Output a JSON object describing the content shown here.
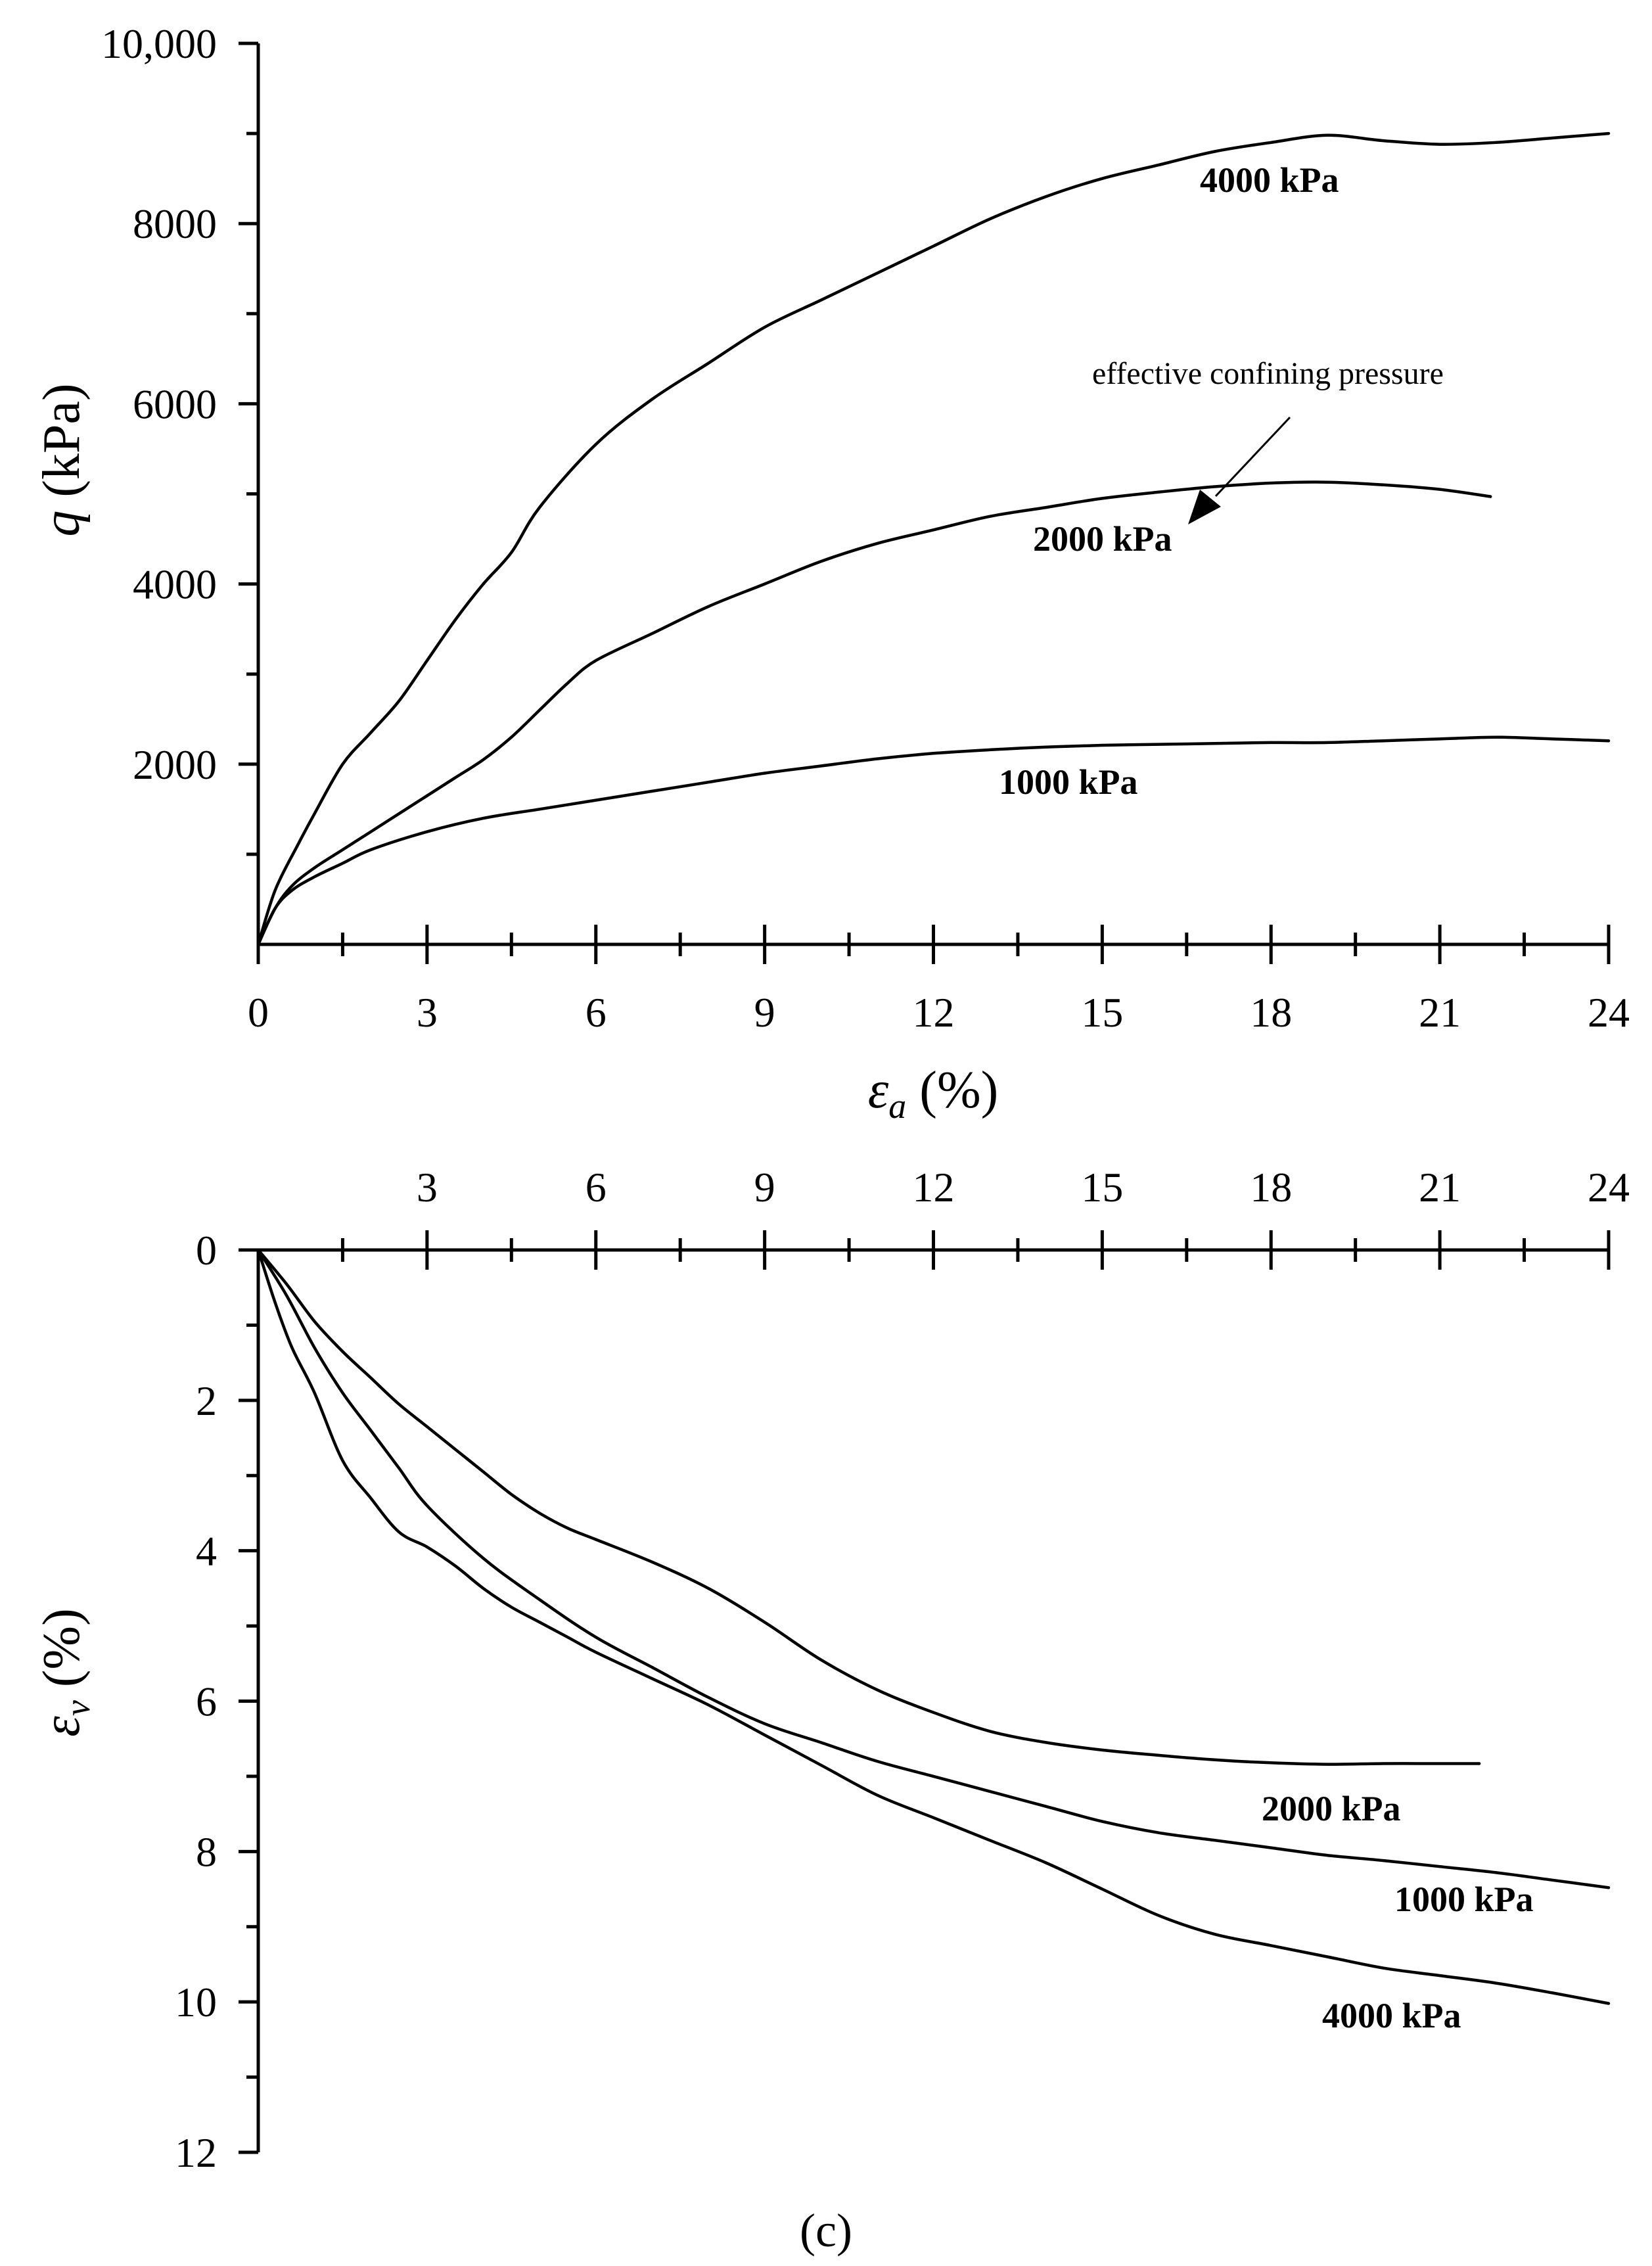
{
  "chart_data": [
    {
      "id": "top",
      "type": "line",
      "xlabel_symbol": "ε",
      "xlabel_sub": "a",
      "xlabel_unit": " (%)",
      "ylabel_symbol": "q",
      "ylabel_unit": " (kPa)",
      "xlim": [
        0,
        24
      ],
      "ylim": [
        0,
        10000
      ],
      "x_ticks": [
        0,
        3,
        6,
        9,
        12,
        15,
        18,
        21,
        24
      ],
      "x_tick_labels": [
        "0",
        "3",
        "6",
        "9",
        "12",
        "15",
        "18",
        "21",
        "24"
      ],
      "y_ticks": [
        2000,
        4000,
        6000,
        8000,
        10000
      ],
      "y_tick_labels": [
        "2000",
        "4000",
        "6000",
        "8000",
        "10,000"
      ],
      "annotation": "effective confining pressure",
      "series": [
        {
          "name": "4000 kPa",
          "label": "4000 kPa",
          "x": [
            0,
            0.3,
            0.7,
            1.0,
            1.5,
            2.0,
            2.5,
            3.0,
            3.5,
            4.0,
            4.5,
            5.0,
            6.0,
            7.0,
            8.0,
            9.0,
            10.0,
            11.0,
            12.0,
            13.0,
            14.0,
            15.0,
            16.0,
            17.0,
            18.0,
            19.0,
            20.0,
            21.0,
            22.0,
            23.0,
            24.0
          ],
          "y": [
            0,
            600,
            1100,
            1450,
            2000,
            2350,
            2700,
            3150,
            3600,
            4000,
            4350,
            4850,
            5550,
            6050,
            6450,
            6850,
            7150,
            7450,
            7750,
            8050,
            8300,
            8500,
            8650,
            8800,
            8900,
            8980,
            8920,
            8880,
            8900,
            8950,
            9000
          ]
        },
        {
          "name": "2000 kPa",
          "label": "2000 kPa",
          "x": [
            0,
            0.3,
            0.6,
            1.0,
            1.5,
            2.0,
            2.5,
            3.0,
            3.5,
            4.0,
            4.5,
            5.0,
            5.5,
            6.0,
            7.0,
            8.0,
            9.0,
            10.0,
            11.0,
            12.0,
            13.0,
            14.0,
            15.0,
            16.0,
            17.0,
            18.0,
            19.0,
            20.0,
            21.0,
            21.9
          ],
          "y": [
            0,
            400,
            650,
            850,
            1050,
            1250,
            1450,
            1650,
            1850,
            2050,
            2300,
            2600,
            2900,
            3150,
            3450,
            3750,
            4000,
            4250,
            4450,
            4600,
            4750,
            4850,
            4950,
            5020,
            5080,
            5120,
            5130,
            5100,
            5050,
            4970
          ]
        },
        {
          "name": "1000 kPa",
          "label": "1000 kPa",
          "x": [
            0,
            0.3,
            0.6,
            1.0,
            1.5,
            2.0,
            3.0,
            4.0,
            5.0,
            6.0,
            7.0,
            8.0,
            9.0,
            10.0,
            11.0,
            12.0,
            13.0,
            14.0,
            15.0,
            16.0,
            17.0,
            18.0,
            19.0,
            20.0,
            21.0,
            22.0,
            23.0,
            24.0
          ],
          "y": [
            0,
            400,
            600,
            750,
            900,
            1050,
            1250,
            1400,
            1500,
            1600,
            1700,
            1800,
            1900,
            1980,
            2060,
            2120,
            2160,
            2190,
            2210,
            2220,
            2230,
            2240,
            2240,
            2260,
            2280,
            2300,
            2280,
            2260
          ]
        }
      ]
    },
    {
      "id": "bottom",
      "type": "line",
      "panel_label": "(c)",
      "ylabel_symbol": "ε",
      "ylabel_sub": "v",
      "ylabel_unit": " (%)",
      "xlim": [
        0,
        24
      ],
      "ylim": [
        0,
        12
      ],
      "y_inverted": true,
      "x_axis_position": "top",
      "x_ticks": [
        3,
        6,
        9,
        12,
        15,
        18,
        21,
        24
      ],
      "x_tick_labels": [
        "3",
        "6",
        "9",
        "12",
        "15",
        "18",
        "21",
        "24"
      ],
      "y_ticks": [
        0,
        2,
        4,
        6,
        8,
        10,
        12
      ],
      "y_tick_labels": [
        "0",
        "2",
        "4",
        "6",
        "8",
        "10",
        "12"
      ],
      "series": [
        {
          "name": "2000 kPa",
          "label": "2000 kPa",
          "x": [
            0,
            0.5,
            1.0,
            1.5,
            2.0,
            2.5,
            3.0,
            3.5,
            4.0,
            4.5,
            5.0,
            5.5,
            6.0,
            7.0,
            8.0,
            9.0,
            10.0,
            11.0,
            12.0,
            13.0,
            14.0,
            15.0,
            16.0,
            17.0,
            18.0,
            19.0,
            20.0,
            21.0,
            21.7
          ],
          "y": [
            0,
            0.45,
            0.95,
            1.35,
            1.7,
            2.05,
            2.35,
            2.65,
            2.95,
            3.25,
            3.5,
            3.7,
            3.85,
            4.15,
            4.5,
            4.95,
            5.45,
            5.85,
            6.15,
            6.4,
            6.55,
            6.65,
            6.72,
            6.78,
            6.82,
            6.84,
            6.83,
            6.83,
            6.83
          ]
        },
        {
          "name": "1000 kPa",
          "label": "1000 kPa",
          "x": [
            0,
            0.5,
            1.0,
            1.5,
            2.0,
            2.5,
            3.0,
            4.0,
            5.0,
            6.0,
            7.0,
            8.0,
            9.0,
            10.0,
            11.0,
            12.0,
            13.0,
            14.0,
            15.0,
            16.0,
            17.0,
            18.0,
            19.0,
            20.0,
            21.0,
            22.0,
            23.0,
            24.0
          ],
          "y": [
            0,
            0.6,
            1.3,
            1.9,
            2.4,
            2.9,
            3.4,
            4.1,
            4.65,
            5.15,
            5.55,
            5.95,
            6.3,
            6.55,
            6.8,
            7.0,
            7.2,
            7.4,
            7.6,
            7.75,
            7.85,
            7.95,
            8.05,
            8.12,
            8.2,
            8.28,
            8.38,
            8.48
          ]
        },
        {
          "name": "4000 kPa",
          "label": "4000 kPa",
          "x": [
            0,
            0.3,
            0.6,
            1.0,
            1.5,
            2.0,
            2.5,
            3.0,
            3.5,
            4.0,
            4.5,
            5.0,
            5.5,
            6.0,
            7.0,
            8.0,
            9.0,
            10.0,
            11.0,
            12.0,
            13.0,
            14.0,
            15.0,
            16.0,
            17.0,
            18.0,
            19.0,
            20.0,
            21.0,
            22.0,
            23.0,
            24.0
          ],
          "y": [
            0,
            0.7,
            1.3,
            1.9,
            2.8,
            3.3,
            3.75,
            3.95,
            4.2,
            4.5,
            4.75,
            4.95,
            5.15,
            5.35,
            5.7,
            6.05,
            6.45,
            6.85,
            7.25,
            7.55,
            7.85,
            8.15,
            8.5,
            8.85,
            9.1,
            9.25,
            9.4,
            9.55,
            9.65,
            9.75,
            9.88,
            10.02
          ]
        }
      ]
    }
  ]
}
